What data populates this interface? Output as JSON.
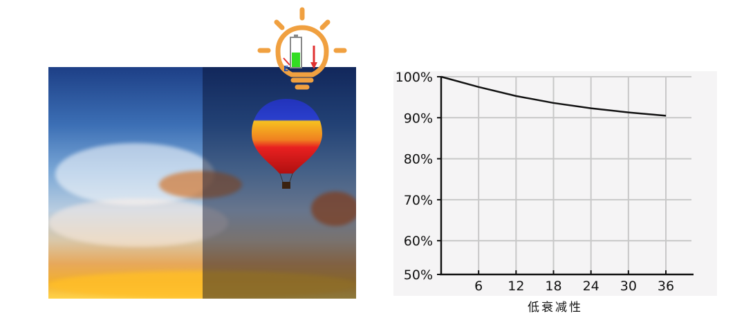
{
  "chart_data": {
    "type": "line",
    "xlabel": "低衰减性",
    "ylabel": "",
    "x": [
      0,
      6,
      12,
      18,
      24,
      30,
      36
    ],
    "x_ticks": [
      "6",
      "12",
      "18",
      "24",
      "30",
      "36"
    ],
    "y_ticks": [
      "100%",
      "90%",
      "80%",
      "70%",
      "60%",
      "50%"
    ],
    "y_tick_values": [
      100,
      90,
      80,
      70,
      60,
      50
    ],
    "series": [
      {
        "values": [
          100,
          97.5,
          95.3,
          93.6,
          92.3,
          91.3,
          90.5
        ]
      }
    ],
    "ylim": [
      50,
      100
    ],
    "xlim": [
      0,
      40
    ],
    "grid": true,
    "colors": {
      "line": "#111111",
      "grid": "#c8c8c8",
      "background": "#f5f4f5"
    }
  },
  "icon": {
    "name": "lightbulb-battery-icon",
    "accent": "#f0a040",
    "battery": "#33dd22",
    "arrow": "#e03030",
    "gauge_label": "E"
  }
}
